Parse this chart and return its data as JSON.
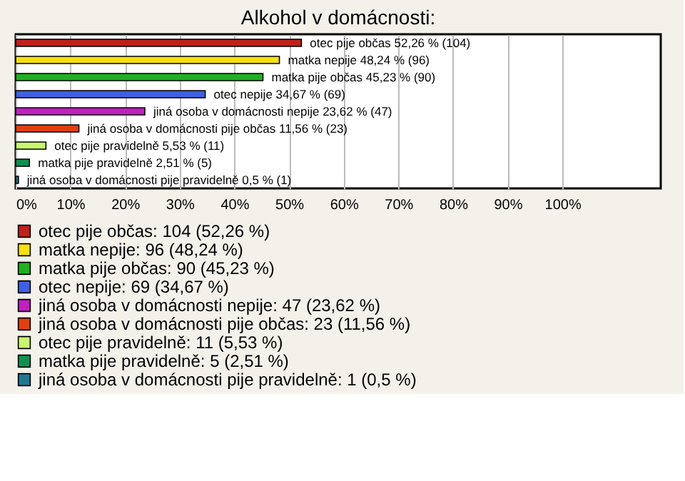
{
  "chart_data": {
    "type": "bar",
    "orientation": "horizontal",
    "title": "Alkohol v domácnosti:",
    "categories": [
      null,
      null,
      null,
      null,
      null,
      null,
      null,
      null,
      null
    ],
    "series": [
      {
        "name": "otec pije občas: 104 (52,26 %)",
        "color": "#c0201a",
        "values": [
          52.26,
          null,
          null,
          null,
          null,
          null,
          null,
          null,
          null
        ],
        "value_labels": [
          "otec pije občas 52,26 % (104)",
          null,
          null,
          null,
          null,
          null,
          null,
          null,
          null
        ]
      },
      {
        "name": "matka nepije: 96 (48,24 %)",
        "color": "#f5e010",
        "values": [
          null,
          48.24,
          null,
          null,
          null,
          null,
          null,
          null,
          null
        ],
        "value_labels": [
          null,
          "matka nepije 48,24 % (96)",
          null,
          null,
          null,
          null,
          null,
          null,
          null
        ]
      },
      {
        "name": "matka pije občas: 90 (45,23 %)",
        "color": "#20b020",
        "values": [
          null,
          null,
          45.23,
          null,
          null,
          null,
          null,
          null,
          null
        ],
        "value_labels": [
          null,
          null,
          "matka pije občas 45,23 % (90)",
          null,
          null,
          null,
          null,
          null,
          null
        ]
      },
      {
        "name": "otec nepije: 69 (34,67 %)",
        "color": "#4060e0",
        "values": [
          null,
          null,
          null,
          34.67,
          null,
          null,
          null,
          null,
          null
        ],
        "value_labels": [
          null,
          null,
          null,
          "otec nepije 34,67 % (69)",
          null,
          null,
          null,
          null,
          null
        ]
      },
      {
        "name": "jiná osoba v domácnosti nepije: 47 (23,62 %)",
        "color": "#c020c0",
        "values": [
          null,
          null,
          null,
          null,
          23.62,
          null,
          null,
          null,
          null
        ],
        "value_labels": [
          null,
          null,
          null,
          null,
          "jiná osoba v domácnosti nepije 23,62 % (47)",
          null,
          null,
          null,
          null
        ]
      },
      {
        "name": "jiná osoba v domácnosti pije občas: 23 (11,56 %)",
        "color": "#e04010",
        "values": [
          null,
          null,
          null,
          null,
          null,
          11.56,
          null,
          null,
          null
        ],
        "value_labels": [
          null,
          null,
          null,
          null,
          null,
          "jiná osoba v domácnosti pije občas 11,56 % (23)",
          null,
          null,
          null
        ]
      },
      {
        "name": "otec pije pravidelně: 11 (5,53 %)",
        "color": "#c8f870",
        "values": [
          null,
          null,
          null,
          null,
          null,
          null,
          5.53,
          null,
          null
        ],
        "value_labels": [
          null,
          null,
          null,
          null,
          null,
          null,
          "otec pije pravidelně 5,53 % (11)",
          null,
          null
        ]
      },
      {
        "name": "matka pije pravidelně: 5 (2,51 %)",
        "color": "#109050",
        "values": [
          null,
          null,
          null,
          null,
          null,
          null,
          null,
          2.51,
          null
        ],
        "value_labels": [
          null,
          null,
          null,
          null,
          null,
          null,
          null,
          "matka pije pravidelně 2,51 % (5)",
          null
        ]
      },
      {
        "name": "jiná osoba v domácnosti pije pravidelně: 1 (0,5 %)",
        "color": "#207890",
        "values": [
          null,
          null,
          null,
          null,
          null,
          null,
          null,
          null,
          0.5
        ],
        "value_labels": [
          null,
          null,
          null,
          null,
          null,
          null,
          null,
          null,
          "jiná osoba v domácnosti pije pravidelně 0,5 % (1)"
        ]
      }
    ],
    "xlim": [
      0,
      118
    ],
    "xticks": [
      {
        "value": 0,
        "label": "0%"
      },
      {
        "value": 10,
        "label": "10%"
      },
      {
        "value": 20,
        "label": "20%"
      },
      {
        "value": 30,
        "label": "30%"
      },
      {
        "value": 40,
        "label": "40%"
      },
      {
        "value": 50,
        "label": "50%"
      },
      {
        "value": 60,
        "label": "60%"
      },
      {
        "value": 70,
        "label": "70%"
      },
      {
        "value": 80,
        "label": "80%"
      },
      {
        "value": 90,
        "label": "90%"
      },
      {
        "value": 100,
        "label": "100%"
      }
    ],
    "grid": "x",
    "legend": "bottom",
    "tick_labels": "x"
  }
}
